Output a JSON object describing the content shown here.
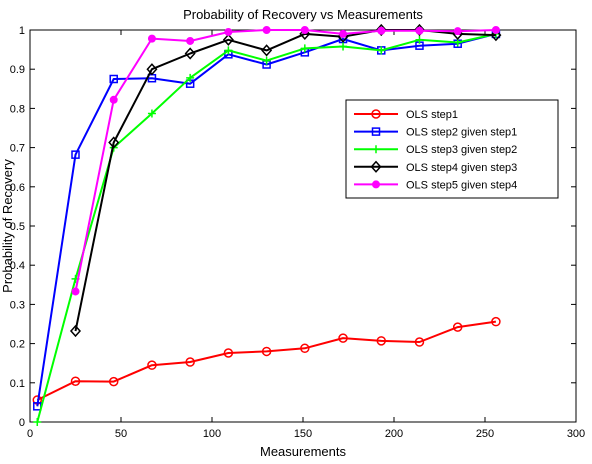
{
  "chart_data": {
    "type": "line",
    "title": "Probability of Recovery vs Measurements",
    "xlabel": "Measurements",
    "ylabel": "Probability of Recovery",
    "xlim": [
      0,
      300
    ],
    "ylim": [
      0,
      1
    ],
    "xticks": [
      0,
      50,
      100,
      150,
      200,
      250,
      300
    ],
    "yticks": [
      0,
      0.1,
      0.2,
      0.3,
      0.4,
      0.5,
      0.6,
      0.7,
      0.8,
      0.9,
      1
    ],
    "xtick_labels": [
      "0",
      "50",
      "100",
      "150",
      "200",
      "250",
      "300"
    ],
    "ytick_labels": [
      "0",
      "0.1",
      "0.2",
      "0.3",
      "0.4",
      "0.5",
      "0.6",
      "0.7",
      "0.8",
      "0.9",
      "1"
    ],
    "grid": false,
    "legend_position": "right",
    "series": [
      {
        "name": "OLS step1",
        "color": "#ff0000",
        "marker": "circle",
        "x": [
          4,
          25,
          46,
          67,
          88,
          109,
          130,
          151,
          172,
          193,
          214,
          235,
          256
        ],
        "y": [
          0.056,
          0.104,
          0.103,
          0.145,
          0.153,
          0.176,
          0.18,
          0.188,
          0.214,
          0.207,
          0.204,
          0.242,
          0.256
        ]
      },
      {
        "name": "OLS step2 given step1",
        "color": "#0000ff",
        "marker": "square",
        "x": [
          4,
          25,
          46,
          67,
          88,
          109,
          130,
          151,
          172,
          193,
          214,
          235,
          256
        ],
        "y": [
          0.04,
          0.682,
          0.875,
          0.877,
          0.863,
          0.938,
          0.912,
          0.943,
          0.977,
          0.948,
          0.96,
          0.965,
          0.99
        ]
      },
      {
        "name": "OLS step3 given step2",
        "color": "#00ff00",
        "marker": "plus",
        "x": [
          4,
          25,
          46,
          67,
          88,
          109,
          130,
          151,
          172,
          193,
          214,
          235,
          256
        ],
        "y": [
          0.0,
          0.365,
          0.7,
          0.787,
          0.878,
          0.948,
          0.922,
          0.953,
          0.958,
          0.948,
          0.975,
          0.968,
          0.99
        ]
      },
      {
        "name": "OLS step4 given step3",
        "color": "#000000",
        "marker": "diamond",
        "x": [
          25,
          46,
          67,
          88,
          109,
          130,
          151,
          172,
          193,
          214,
          235,
          256
        ],
        "y": [
          0.232,
          0.713,
          0.9,
          0.94,
          0.975,
          0.948,
          0.99,
          0.983,
          1.0,
          1.0,
          0.99,
          0.987
        ]
      },
      {
        "name": "OLS step5 given step4",
        "color": "#ff00ff",
        "marker": "filled-circle",
        "x": [
          25,
          46,
          67,
          88,
          109,
          130,
          151,
          172,
          193,
          214,
          235,
          256
        ],
        "y": [
          0.333,
          0.822,
          0.978,
          0.972,
          0.995,
          1.0,
          1.0,
          0.99,
          0.998,
          0.998,
          0.997,
          1.0
        ]
      }
    ]
  }
}
